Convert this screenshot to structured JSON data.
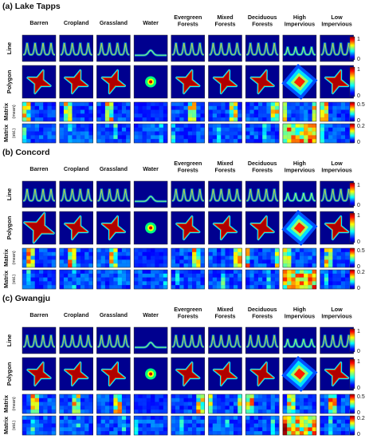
{
  "figure": {
    "panels": [
      {
        "title": "(a) Lake Tapps",
        "seed": 1
      },
      {
        "title": "(b) Concord",
        "seed": 2
      },
      {
        "title": "(c) Gwangju",
        "seed": 3
      }
    ],
    "columns": [
      [
        "Barren"
      ],
      [
        "Cropland"
      ],
      [
        "Grassland"
      ],
      [
        "Water"
      ],
      [
        "Evergreen",
        "Forests"
      ],
      [
        "Mixed",
        "Forests"
      ],
      [
        "Deciduous",
        "Forests"
      ],
      [
        "High",
        "Impervious"
      ],
      [
        "Low",
        "Impervious"
      ]
    ],
    "rows": [
      {
        "label": "Line",
        "sub": ""
      },
      {
        "label": "Polygon",
        "sub": ""
      },
      {
        "label": "Matrix",
        "sub": "(mean)"
      },
      {
        "label": "Matrix",
        "sub": "(std.)"
      }
    ],
    "colorbars": [
      {
        "ticks": [
          "1",
          "0"
        ]
      },
      {
        "ticks": [
          "1",
          "0"
        ]
      },
      {
        "ticks": [
          "0.5",
          "0"
        ]
      },
      {
        "ticks": [
          "0.2",
          "0"
        ]
      }
    ]
  }
}
